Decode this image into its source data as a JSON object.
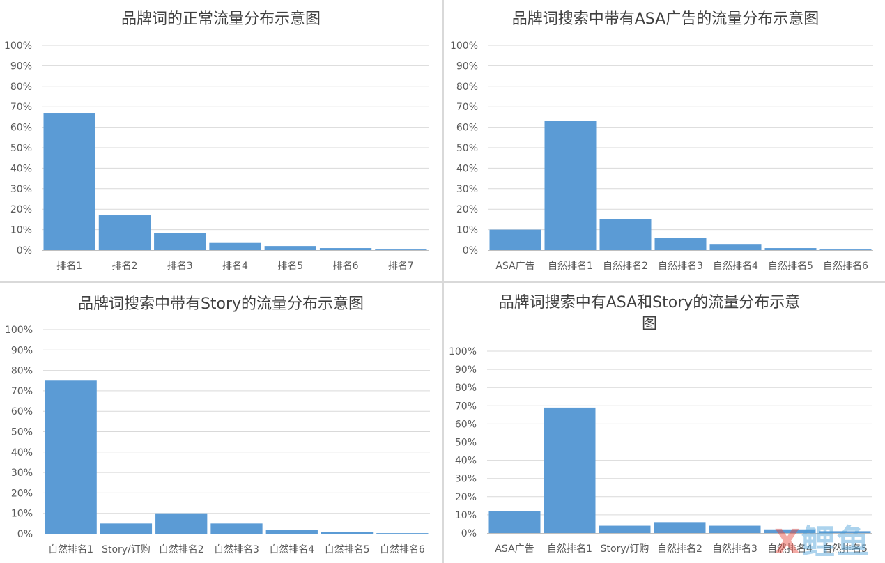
{
  "colors": {
    "bar": "#5b9bd5",
    "grid": "#d9d9d9",
    "divider": "#d9d9d9"
  },
  "watermark": {
    "left": "X",
    "right": "鲤鱼"
  },
  "chart_data": [
    {
      "type": "bar",
      "title": "品牌词的正常流量分布示意图",
      "categories": [
        "排名1",
        "排名2",
        "排名3",
        "排名4",
        "排名5",
        "排名6",
        "排名7"
      ],
      "values": [
        67,
        17,
        8.5,
        3.5,
        2,
        1,
        0.3
      ],
      "ylim": [
        0,
        100
      ],
      "yticks": [
        "0%",
        "10%",
        "20%",
        "30%",
        "40%",
        "50%",
        "60%",
        "70%",
        "80%",
        "90%",
        "100%"
      ],
      "grid": true
    },
    {
      "type": "bar",
      "title": "品牌词搜索中带有ASA广告的流量分布示意图",
      "categories": [
        "ASA广告",
        "自然排名1",
        "自然排名2",
        "自然排名3",
        "自然排名4",
        "自然排名5",
        "自然排名6"
      ],
      "values": [
        10,
        63,
        15,
        6,
        3,
        1,
        0.3
      ],
      "ylim": [
        0,
        100
      ],
      "yticks": [
        "0%",
        "10%",
        "20%",
        "30%",
        "40%",
        "50%",
        "60%",
        "70%",
        "80%",
        "90%",
        "100%"
      ],
      "grid": true
    },
    {
      "type": "bar",
      "title": "品牌词搜索中带有Story的流量分布示意图",
      "categories": [
        "自然排名1",
        "Story/订购",
        "自然排名2",
        "自然排名3",
        "自然排名4",
        "自然排名5",
        "自然排名6"
      ],
      "values": [
        75,
        5,
        10,
        5,
        2,
        1,
        0.3
      ],
      "ylim": [
        0,
        100
      ],
      "yticks": [
        "0%",
        "10%",
        "20%",
        "30%",
        "40%",
        "50%",
        "60%",
        "70%",
        "80%",
        "90%",
        "100%"
      ],
      "grid": true
    },
    {
      "type": "bar",
      "title": "品牌词搜索中有ASA和Story的流量分布示意图",
      "categories": [
        "ASA广告",
        "自然排名1",
        "Story/订购",
        "自然排名2",
        "自然排名3",
        "自然排名4",
        "自然排名5"
      ],
      "values": [
        12,
        69,
        4,
        6,
        4,
        2,
        1
      ],
      "ylim": [
        0,
        100
      ],
      "yticks": [
        "0%",
        "10%",
        "20%",
        "30%",
        "40%",
        "50%",
        "60%",
        "70%",
        "80%",
        "90%",
        "100%"
      ],
      "grid": true
    }
  ]
}
